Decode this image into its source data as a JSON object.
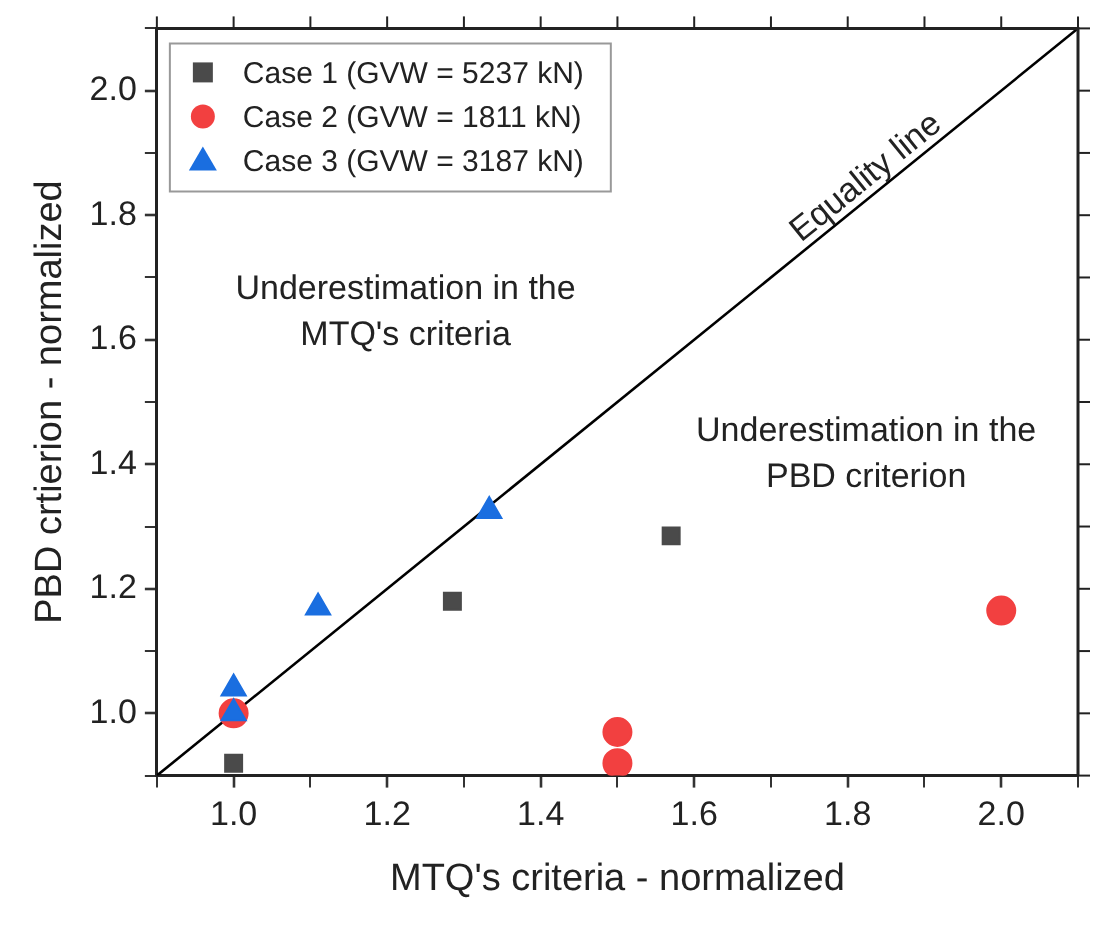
{
  "chart_data": {
    "type": "scatter",
    "xlabel": "MTQ's criteria - normalized",
    "ylabel": "PBD crtierion - normalized",
    "xlim": [
      0.9,
      2.1
    ],
    "ylim": [
      0.9,
      2.1
    ],
    "xticks": [
      {
        "value": 0.9,
        "label": null
      },
      {
        "value": 1,
        "label": "1.0"
      },
      {
        "value": 1.1,
        "label": null
      },
      1.2,
      {
        "value": 1.3,
        "label": null
      },
      1.4,
      {
        "value": 1.5,
        "label": null
      },
      1.6,
      {
        "value": 1.7,
        "label": null
      },
      1.8,
      {
        "value": 1.9,
        "label": null
      },
      {
        "value": 2,
        "label": "2.0"
      },
      {
        "value": 2.1,
        "label": null
      }
    ],
    "yticks": [
      {
        "value": 0.9,
        "label": null
      },
      {
        "value": 1,
        "label": "1.0"
      },
      {
        "value": 1.1,
        "label": null
      },
      1.2,
      {
        "value": 1.3,
        "label": null
      },
      1.4,
      {
        "value": 1.5,
        "label": null
      },
      1.6,
      {
        "value": 1.7,
        "label": null
      },
      1.8,
      {
        "value": 1.9,
        "label": null
      },
      {
        "value": 2,
        "label": "2.0"
      },
      {
        "value": 2.1,
        "label": null
      }
    ],
    "series": [
      {
        "name": "Case 1 (GVW = 5237 kN)",
        "color": "#4a4a4a",
        "marker": "square",
        "x": [
          1.0,
          1.285,
          1.57
        ],
        "values": [
          0.92,
          1.18,
          1.285
        ]
      },
      {
        "name": "Case 2 (GVW = 1811 kN)",
        "color": "#f24040",
        "marker": "circle",
        "x": [
          1.0,
          1.5,
          1.5,
          2.0
        ],
        "values": [
          1.0,
          0.97,
          0.92,
          1.165
        ]
      },
      {
        "name": "Case 3 (GVW = 3187 kN)",
        "color": "#1a6ee0",
        "marker": "triangle",
        "x": [
          1.0,
          1.0,
          1.11,
          1.333
        ],
        "values": [
          1.0,
          1.04,
          1.17,
          1.325
        ]
      },
      {
        "type": "line",
        "color": "#000000",
        "marker": "none",
        "x": [
          0.9,
          2.1
        ],
        "values": [
          0.9,
          2.1
        ]
      }
    ],
    "annotations": [
      "Equality line",
      "Underestimation in the\nMTQ's criteria",
      "Underestimation in the\nPBD criterion"
    ],
    "legend": "top left",
    "grid": false
  }
}
